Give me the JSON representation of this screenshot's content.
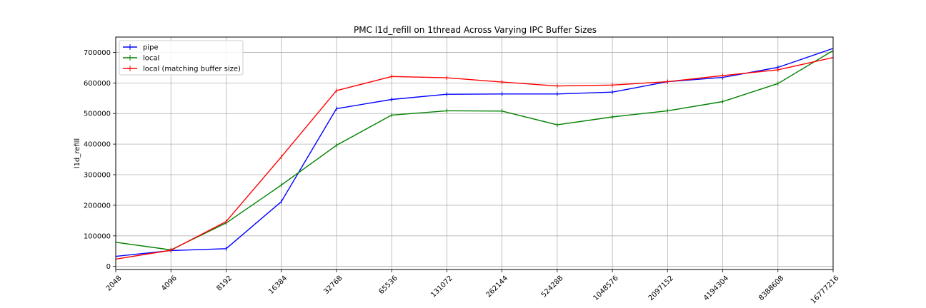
{
  "chart_data": {
    "type": "line",
    "title": "PMC l1d_refill on 1thread Across Varying IPC Buffer Sizes",
    "xlabel": "",
    "ylabel": "l1d_refill",
    "x_scale": "log2",
    "x": [
      "2048",
      "4096",
      "8192",
      "16384",
      "32768",
      "65536",
      "131072",
      "262144",
      "524288",
      "1048576",
      "2097152",
      "4194304",
      "8388608",
      "16777216"
    ],
    "y_ticks": [
      "0",
      "100000",
      "200000",
      "300000",
      "400000",
      "500000",
      "600000",
      "700000"
    ],
    "ylim": [
      -10000,
      750000
    ],
    "grid": true,
    "legend_position": "top-left",
    "series": [
      {
        "name": "pipe",
        "color": "#0000ff",
        "values": [
          33000,
          52000,
          58000,
          212000,
          516000,
          546000,
          563000,
          564000,
          564000,
          570000,
          604000,
          618000,
          651000,
          713000
        ]
      },
      {
        "name": "local",
        "color": "#008000",
        "values": [
          79000,
          54000,
          142000,
          266000,
          396000,
          495000,
          509000,
          508000,
          463000,
          489000,
          509000,
          539000,
          598000,
          706000
        ]
      },
      {
        "name": "local (matching buffer size)",
        "color": "#ff0000",
        "values": [
          24000,
          53000,
          147000,
          358000,
          575000,
          621000,
          617000,
          603000,
          590000,
          593000,
          604000,
          624000,
          643000,
          683000
        ]
      }
    ]
  }
}
